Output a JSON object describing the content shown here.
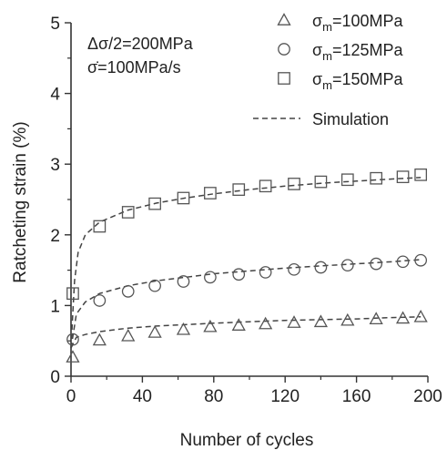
{
  "chart_data": {
    "type": "scatter",
    "xlabel": "Number of cycles",
    "ylabel": "Ratcheting strain (%)",
    "xlim": [
      0,
      200
    ],
    "ylim": [
      0,
      5
    ],
    "xticks": [
      "0",
      "40",
      "80",
      "120",
      "160",
      "200"
    ],
    "yticks": [
      "0",
      "1",
      "2",
      "3",
      "4",
      "5"
    ],
    "grid": false,
    "legend_position": "top-right",
    "annotation": {
      "line1": "Δσ/2=200MPa",
      "line2": "σ̇=100MPa/s"
    },
    "series": [
      {
        "name": "σm=100MPa",
        "legend_label": "σ",
        "legend_sub": "m",
        "legend_suffix": "=100MPa",
        "marker": "triangle",
        "x": [
          1,
          16,
          32,
          47,
          63,
          78,
          94,
          109,
          125,
          140,
          155,
          171,
          186,
          196
        ],
        "y": [
          0.27,
          0.51,
          0.57,
          0.62,
          0.66,
          0.7,
          0.72,
          0.74,
          0.76,
          0.77,
          0.79,
          0.81,
          0.82,
          0.84
        ]
      },
      {
        "name": "σm=125MPa",
        "legend_label": "σ",
        "legend_sub": "m",
        "legend_suffix": "=125MPa",
        "marker": "circle",
        "x": [
          1,
          16,
          32,
          47,
          63,
          78,
          94,
          109,
          125,
          140,
          155,
          171,
          186,
          196
        ],
        "y": [
          0.52,
          1.07,
          1.2,
          1.28,
          1.34,
          1.4,
          1.44,
          1.47,
          1.51,
          1.54,
          1.57,
          1.59,
          1.62,
          1.64
        ]
      },
      {
        "name": "σm=150MPa",
        "legend_label": "σ",
        "legend_sub": "m",
        "legend_suffix": "=150MPa",
        "marker": "square",
        "x": [
          1,
          16,
          32,
          47,
          63,
          78,
          94,
          109,
          125,
          140,
          155,
          171,
          186,
          196
        ],
        "y": [
          1.17,
          2.12,
          2.32,
          2.44,
          2.52,
          2.59,
          2.64,
          2.69,
          2.72,
          2.75,
          2.78,
          2.8,
          2.82,
          2.85
        ]
      }
    ],
    "simulation": {
      "name": "Simulation",
      "curves": [
        {
          "x": [
            0,
            3,
            8,
            16,
            32,
            48,
            64,
            80,
            100,
            120,
            140,
            160,
            180,
            196
          ],
          "y": [
            0.4,
            0.55,
            0.59,
            0.63,
            0.68,
            0.71,
            0.73,
            0.75,
            0.77,
            0.79,
            0.8,
            0.81,
            0.83,
            0.84
          ]
        },
        {
          "x": [
            0,
            3,
            8,
            16,
            32,
            48,
            64,
            80,
            100,
            120,
            140,
            160,
            180,
            196
          ],
          "y": [
            0.4,
            0.88,
            1.05,
            1.17,
            1.28,
            1.35,
            1.4,
            1.45,
            1.49,
            1.53,
            1.56,
            1.59,
            1.62,
            1.65
          ]
        },
        {
          "x": [
            0,
            1,
            2,
            4,
            8,
            16,
            32,
            48,
            64,
            80,
            100,
            120,
            140,
            160,
            180,
            196
          ],
          "y": [
            0.4,
            0.9,
            1.35,
            1.75,
            2.0,
            2.18,
            2.35,
            2.45,
            2.52,
            2.58,
            2.64,
            2.69,
            2.73,
            2.76,
            2.79,
            2.81
          ]
        }
      ]
    }
  }
}
